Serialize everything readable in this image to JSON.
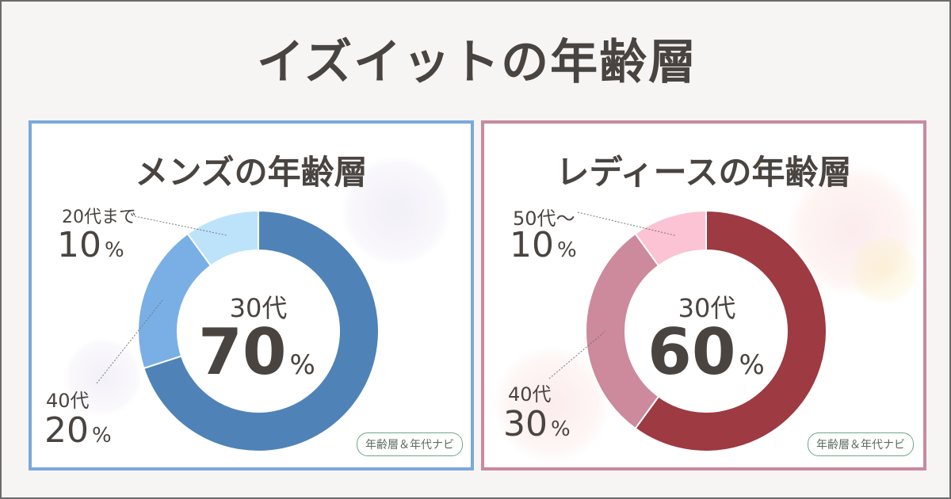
{
  "title": "イズイットの年齢層",
  "colors": {
    "men_border": "#7aa9dc",
    "women_border": "#c98aa0",
    "men_slices": [
      "#4f83b8",
      "#7aafe6",
      "#bde3fb"
    ],
    "women_slices": [
      "#9e3a42",
      "#cc8a9c",
      "#fbc3d4"
    ]
  },
  "panels": {
    "men": {
      "title": "メンズの年齢層",
      "center": {
        "label": "30代",
        "value": "70",
        "unit": "%"
      },
      "labels": [
        {
          "group": "20代まで",
          "value": "10",
          "unit": "%"
        },
        {
          "group": "40代",
          "value": "20",
          "unit": "%"
        }
      ],
      "badge": "年齢層＆年代ナビ"
    },
    "women": {
      "title": "レディースの年齢層",
      "center": {
        "label": "30代",
        "value": "60",
        "unit": "%"
      },
      "labels": [
        {
          "group": "50代～",
          "value": "10",
          "unit": "%"
        },
        {
          "group": "40代",
          "value": "30",
          "unit": "%"
        }
      ],
      "badge": "年齢層＆年代ナビ"
    }
  },
  "chart_data": [
    {
      "type": "pie",
      "title": "メンズの年齢層",
      "categories": [
        "30代",
        "40代",
        "20代まで"
      ],
      "values": [
        70,
        20,
        10
      ]
    },
    {
      "type": "pie",
      "title": "レディースの年齢層",
      "categories": [
        "30代",
        "40代",
        "50代～"
      ],
      "values": [
        60,
        30,
        10
      ]
    }
  ]
}
